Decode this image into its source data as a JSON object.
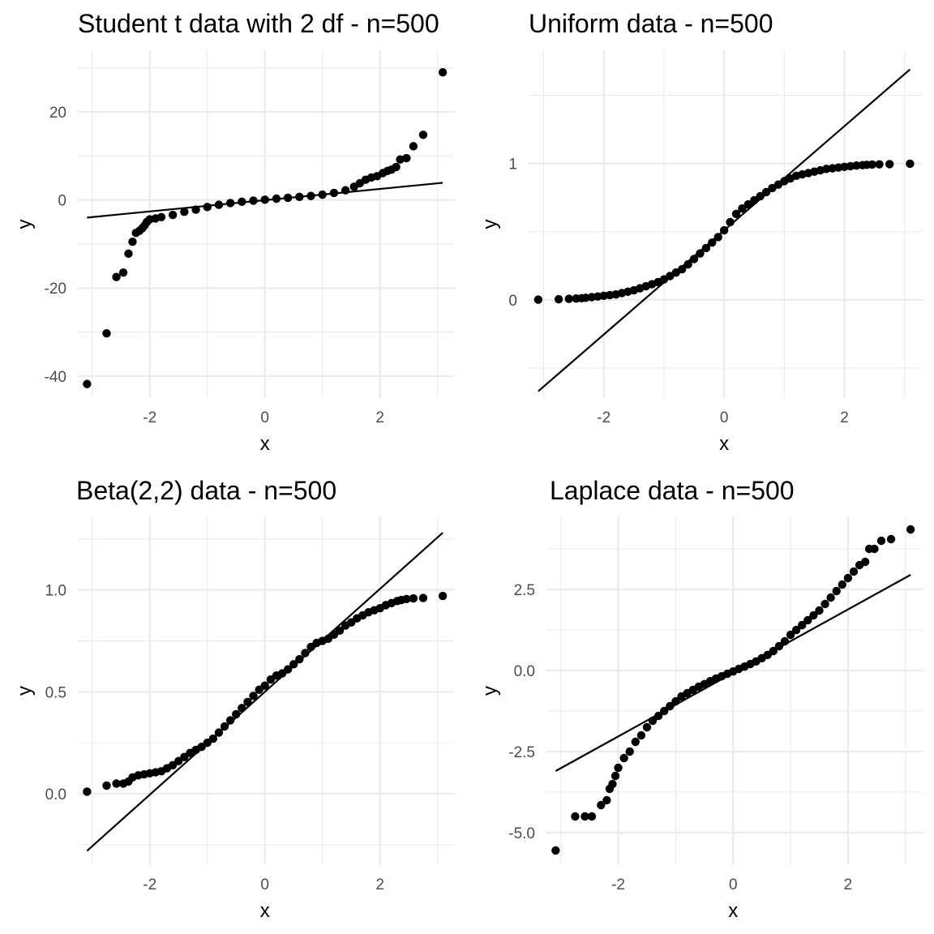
{
  "chart_data": [
    {
      "type": "scatter",
      "kind": "qq-plot",
      "title": "Student t data with 2 df - n=500",
      "xlabel": "x",
      "ylabel": "y",
      "xlim": [
        -3.25,
        3.3
      ],
      "ylim": [
        -45,
        34
      ],
      "x_ticks": [
        -2,
        0,
        2
      ],
      "x_tick_labels": [
        "-2",
        "0",
        "2"
      ],
      "y_ticks": [
        -40,
        -20,
        0,
        20
      ],
      "y_tick_labels": [
        "-40",
        "-20",
        "0",
        "20"
      ],
      "grid": true,
      "reference_line": {
        "x": [
          -3.09,
          3.09
        ],
        "y": [
          -4.0,
          3.9
        ]
      },
      "points": [
        [
          -3.09,
          -41.8
        ],
        [
          -2.75,
          -30.3
        ],
        [
          -2.58,
          -17.5
        ],
        [
          -2.46,
          -16.5
        ],
        [
          -2.37,
          -12.2
        ],
        [
          -2.3,
          -9.5
        ],
        [
          -2.24,
          -7.5
        ],
        [
          -2.18,
          -7.0
        ],
        [
          -2.13,
          -6.4
        ],
        [
          -2.09,
          -5.8
        ],
        [
          -2.05,
          -5.0
        ],
        [
          -2.0,
          -4.4
        ],
        [
          -1.9,
          -4.2
        ],
        [
          -1.8,
          -3.9
        ],
        [
          -1.6,
          -3.4
        ],
        [
          -1.4,
          -2.7
        ],
        [
          -1.2,
          -2.2
        ],
        [
          -1.0,
          -1.6
        ],
        [
          -0.8,
          -1.1
        ],
        [
          -0.6,
          -0.7
        ],
        [
          -0.4,
          -0.4
        ],
        [
          -0.2,
          -0.15
        ],
        [
          0.0,
          0.05
        ],
        [
          0.2,
          0.3
        ],
        [
          0.4,
          0.5
        ],
        [
          0.6,
          0.7
        ],
        [
          0.8,
          0.9
        ],
        [
          1.0,
          1.2
        ],
        [
          1.2,
          1.6
        ],
        [
          1.4,
          2.2
        ],
        [
          1.55,
          3.0
        ],
        [
          1.65,
          3.8
        ],
        [
          1.75,
          4.6
        ],
        [
          1.85,
          5.1
        ],
        [
          1.95,
          5.4
        ],
        [
          2.05,
          6.1
        ],
        [
          2.13,
          6.6
        ],
        [
          2.2,
          6.9
        ],
        [
          2.28,
          7.5
        ],
        [
          2.35,
          9.2
        ],
        [
          2.46,
          9.5
        ],
        [
          2.58,
          12.2
        ],
        [
          2.75,
          14.8
        ],
        [
          3.09,
          29.0
        ]
      ]
    },
    {
      "type": "scatter",
      "kind": "qq-plot",
      "title": "Uniform data - n=500",
      "xlabel": "x",
      "ylabel": "y",
      "xlim": [
        -3.25,
        3.3
      ],
      "ylim": [
        -0.72,
        1.83
      ],
      "x_ticks": [
        -2,
        0,
        2
      ],
      "x_tick_labels": [
        "-2",
        "0",
        "2"
      ],
      "y_ticks": [
        0,
        1
      ],
      "y_tick_labels": [
        "0",
        "1"
      ],
      "grid": true,
      "reference_line": {
        "x": [
          -3.09,
          3.09
        ],
        "y": [
          -0.67,
          1.69
        ]
      },
      "points": [
        [
          -3.09,
          0.002
        ],
        [
          -2.75,
          0.005
        ],
        [
          -2.58,
          0.008
        ],
        [
          -2.46,
          0.01
        ],
        [
          -2.37,
          0.012
        ],
        [
          -2.3,
          0.015
        ],
        [
          -2.2,
          0.02
        ],
        [
          -2.1,
          0.025
        ],
        [
          -2.0,
          0.03
        ],
        [
          -1.9,
          0.035
        ],
        [
          -1.8,
          0.04
        ],
        [
          -1.7,
          0.05
        ],
        [
          -1.6,
          0.06
        ],
        [
          -1.5,
          0.07
        ],
        [
          -1.4,
          0.085
        ],
        [
          -1.3,
          0.1
        ],
        [
          -1.2,
          0.115
        ],
        [
          -1.1,
          0.13
        ],
        [
          -1.0,
          0.15
        ],
        [
          -0.9,
          0.175
        ],
        [
          -0.8,
          0.2
        ],
        [
          -0.7,
          0.225
        ],
        [
          -0.6,
          0.26
        ],
        [
          -0.5,
          0.3
        ],
        [
          -0.4,
          0.34
        ],
        [
          -0.3,
          0.38
        ],
        [
          -0.2,
          0.42
        ],
        [
          -0.1,
          0.46
        ],
        [
          0.0,
          0.51
        ],
        [
          0.1,
          0.57
        ],
        [
          0.2,
          0.63
        ],
        [
          0.3,
          0.67
        ],
        [
          0.4,
          0.7
        ],
        [
          0.5,
          0.73
        ],
        [
          0.6,
          0.76
        ],
        [
          0.7,
          0.79
        ],
        [
          0.8,
          0.82
        ],
        [
          0.9,
          0.845
        ],
        [
          1.0,
          0.87
        ],
        [
          1.1,
          0.89
        ],
        [
          1.2,
          0.91
        ],
        [
          1.3,
          0.92
        ],
        [
          1.4,
          0.93
        ],
        [
          1.5,
          0.94
        ],
        [
          1.6,
          0.95
        ],
        [
          1.7,
          0.96
        ],
        [
          1.8,
          0.965
        ],
        [
          1.9,
          0.97
        ],
        [
          2.0,
          0.975
        ],
        [
          2.1,
          0.98
        ],
        [
          2.2,
          0.985
        ],
        [
          2.3,
          0.988
        ],
        [
          2.37,
          0.99
        ],
        [
          2.46,
          0.992
        ],
        [
          2.58,
          0.994
        ],
        [
          2.75,
          0.995
        ],
        [
          3.09,
          0.998
        ]
      ]
    },
    {
      "type": "scatter",
      "kind": "qq-plot",
      "title": "Beta(2,2) data - n=500",
      "xlabel": "x",
      "ylabel": "y",
      "xlim": [
        -3.25,
        3.3
      ],
      "ylim": [
        -0.35,
        1.36
      ],
      "x_ticks": [
        -2,
        0,
        2
      ],
      "x_tick_labels": [
        "-2",
        "0",
        "2"
      ],
      "y_ticks": [
        0.0,
        0.5,
        1.0
      ],
      "y_tick_labels": [
        "0.0",
        "0.5",
        "1.0"
      ],
      "grid": true,
      "reference_line": {
        "x": [
          -3.09,
          3.09
        ],
        "y": [
          -0.28,
          1.28
        ]
      },
      "points": [
        [
          -3.09,
          0.01
        ],
        [
          -2.75,
          0.04
        ],
        [
          -2.58,
          0.05
        ],
        [
          -2.46,
          0.05
        ],
        [
          -2.37,
          0.06
        ],
        [
          -2.3,
          0.08
        ],
        [
          -2.2,
          0.09
        ],
        [
          -2.1,
          0.095
        ],
        [
          -2.0,
          0.1
        ],
        [
          -1.9,
          0.105
        ],
        [
          -1.8,
          0.11
        ],
        [
          -1.7,
          0.125
        ],
        [
          -1.6,
          0.14
        ],
        [
          -1.5,
          0.16
        ],
        [
          -1.4,
          0.18
        ],
        [
          -1.3,
          0.2
        ],
        [
          -1.2,
          0.215
        ],
        [
          -1.1,
          0.23
        ],
        [
          -1.0,
          0.25
        ],
        [
          -0.9,
          0.27
        ],
        [
          -0.8,
          0.3
        ],
        [
          -0.7,
          0.33
        ],
        [
          -0.6,
          0.36
        ],
        [
          -0.5,
          0.39
        ],
        [
          -0.4,
          0.42
        ],
        [
          -0.3,
          0.45
        ],
        [
          -0.2,
          0.48
        ],
        [
          -0.1,
          0.51
        ],
        [
          0.0,
          0.53
        ],
        [
          0.1,
          0.56
        ],
        [
          0.2,
          0.58
        ],
        [
          0.3,
          0.59
        ],
        [
          0.4,
          0.61
        ],
        [
          0.5,
          0.635
        ],
        [
          0.6,
          0.66
        ],
        [
          0.7,
          0.69
        ],
        [
          0.8,
          0.72
        ],
        [
          0.9,
          0.74
        ],
        [
          1.0,
          0.75
        ],
        [
          1.1,
          0.76
        ],
        [
          1.2,
          0.78
        ],
        [
          1.3,
          0.8
        ],
        [
          1.4,
          0.825
        ],
        [
          1.5,
          0.84
        ],
        [
          1.6,
          0.86
        ],
        [
          1.7,
          0.875
        ],
        [
          1.8,
          0.89
        ],
        [
          1.9,
          0.9
        ],
        [
          2.0,
          0.91
        ],
        [
          2.1,
          0.925
        ],
        [
          2.2,
          0.935
        ],
        [
          2.3,
          0.945
        ],
        [
          2.37,
          0.95
        ],
        [
          2.46,
          0.955
        ],
        [
          2.58,
          0.958
        ],
        [
          2.75,
          0.96
        ],
        [
          3.09,
          0.97
        ]
      ]
    },
    {
      "type": "scatter",
      "kind": "qq-plot",
      "title": "Laplace data - n=500",
      "xlabel": "x",
      "ylabel": "y",
      "xlim": [
        -3.25,
        3.3
      ],
      "ylim": [
        -6.0,
        4.75
      ],
      "x_ticks": [
        -2,
        0,
        2
      ],
      "x_tick_labels": [
        "-2",
        "0",
        "2"
      ],
      "y_ticks": [
        -5.0,
        -2.5,
        0.0,
        2.5
      ],
      "y_tick_labels": [
        "-5.0",
        "-2.5",
        "0.0",
        "2.5"
      ],
      "grid": true,
      "reference_line": {
        "x": [
          -3.09,
          3.09
        ],
        "y": [
          -3.1,
          2.95
        ]
      },
      "points": [
        [
          -3.09,
          -5.55
        ],
        [
          -2.75,
          -4.5
        ],
        [
          -2.58,
          -4.5
        ],
        [
          -2.46,
          -4.5
        ],
        [
          -2.3,
          -4.15
        ],
        [
          -2.2,
          -4.0
        ],
        [
          -2.15,
          -3.65
        ],
        [
          -2.1,
          -3.5
        ],
        [
          -2.05,
          -3.25
        ],
        [
          -2.0,
          -3.0
        ],
        [
          -1.9,
          -2.7
        ],
        [
          -1.8,
          -2.5
        ],
        [
          -1.7,
          -2.2
        ],
        [
          -1.6,
          -2.0
        ],
        [
          -1.5,
          -1.75
        ],
        [
          -1.4,
          -1.55
        ],
        [
          -1.3,
          -1.4
        ],
        [
          -1.2,
          -1.25
        ],
        [
          -1.1,
          -1.1
        ],
        [
          -1.0,
          -0.95
        ],
        [
          -0.9,
          -0.8
        ],
        [
          -0.8,
          -0.7
        ],
        [
          -0.7,
          -0.6
        ],
        [
          -0.6,
          -0.5
        ],
        [
          -0.5,
          -0.42
        ],
        [
          -0.4,
          -0.33
        ],
        [
          -0.3,
          -0.25
        ],
        [
          -0.2,
          -0.18
        ],
        [
          -0.1,
          -0.1
        ],
        [
          0.0,
          -0.03
        ],
        [
          0.1,
          0.05
        ],
        [
          0.2,
          0.12
        ],
        [
          0.3,
          0.2
        ],
        [
          0.4,
          0.28
        ],
        [
          0.5,
          0.38
        ],
        [
          0.6,
          0.48
        ],
        [
          0.7,
          0.6
        ],
        [
          0.8,
          0.75
        ],
        [
          0.9,
          0.9
        ],
        [
          1.0,
          1.1
        ],
        [
          1.1,
          1.25
        ],
        [
          1.2,
          1.4
        ],
        [
          1.3,
          1.55
        ],
        [
          1.4,
          1.7
        ],
        [
          1.5,
          1.85
        ],
        [
          1.6,
          2.05
        ],
        [
          1.7,
          2.25
        ],
        [
          1.8,
          2.45
        ],
        [
          1.9,
          2.65
        ],
        [
          2.0,
          2.85
        ],
        [
          2.1,
          3.05
        ],
        [
          2.2,
          3.25
        ],
        [
          2.3,
          3.35
        ],
        [
          2.37,
          3.75
        ],
        [
          2.46,
          3.75
        ],
        [
          2.58,
          4.0
        ],
        [
          2.75,
          4.05
        ],
        [
          3.09,
          4.35
        ]
      ]
    }
  ]
}
